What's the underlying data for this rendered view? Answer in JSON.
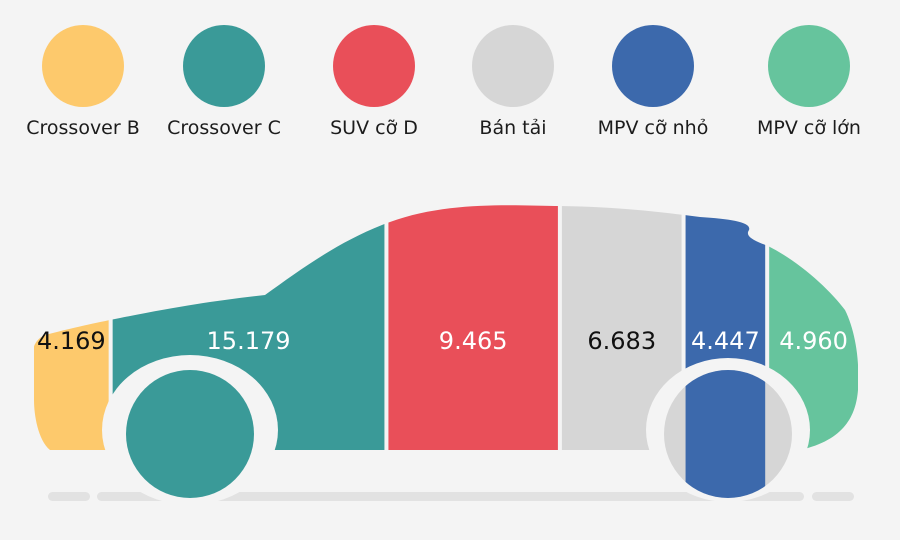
{
  "chart_data": {
    "type": "bar",
    "categories": [
      "Crossover B",
      "Crossover C",
      "SUV cỡ D",
      "Bán tải",
      "MPV cỡ nhỏ",
      "MPV cỡ lớn"
    ],
    "values": [
      4169,
      15179,
      9465,
      6683,
      4447,
      4960
    ],
    "value_labels": [
      "4.169",
      "15.179",
      "9.465",
      "6.683",
      "4.447",
      "4.960"
    ],
    "colors": [
      "#fdc96c",
      "#3a9a98",
      "#e94f59",
      "#d6d6d6",
      "#3c69ac",
      "#66c49d"
    ],
    "label_colors": [
      "#111111",
      "#ffffff",
      "#ffffff",
      "#111111",
      "#ffffff",
      "#ffffff"
    ],
    "title": "",
    "xlabel": "",
    "ylabel": "",
    "legend": "top"
  }
}
